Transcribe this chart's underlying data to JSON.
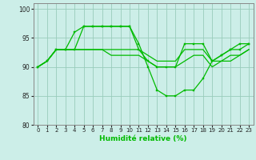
{
  "xlabel": "Humidité relative (%)",
  "xlim": [
    -0.5,
    23.5
  ],
  "ylim": [
    80,
    101
  ],
  "yticks": [
    80,
    85,
    90,
    95,
    100
  ],
  "xticks": [
    0,
    1,
    2,
    3,
    4,
    5,
    6,
    7,
    8,
    9,
    10,
    11,
    12,
    13,
    14,
    15,
    16,
    17,
    18,
    19,
    20,
    21,
    22,
    23
  ],
  "bg_color": "#cceee8",
  "grid_color": "#99ccbb",
  "line_color": "#00bb00",
  "curve1": [
    90,
    91,
    93,
    93,
    93,
    97,
    97,
    97,
    97,
    97,
    97,
    94,
    90,
    86,
    85,
    85,
    86,
    86,
    88,
    91,
    92,
    93,
    94,
    94
  ],
  "curve2": [
    90,
    91,
    93,
    93,
    96,
    97,
    97,
    97,
    97,
    97,
    97,
    93,
    91,
    90,
    90,
    90,
    94,
    94,
    94,
    91,
    92,
    93,
    93,
    94
  ],
  "curve3": [
    90,
    91,
    93,
    93,
    93,
    93,
    93,
    93,
    93,
    93,
    93,
    93,
    92,
    91,
    91,
    91,
    93,
    93,
    93,
    91,
    91,
    92,
    92,
    93
  ],
  "curve4": [
    90,
    91,
    93,
    93,
    93,
    93,
    93,
    93,
    92,
    92,
    92,
    92,
    91,
    90,
    90,
    90,
    91,
    92,
    92,
    90,
    91,
    91,
    92,
    93
  ]
}
